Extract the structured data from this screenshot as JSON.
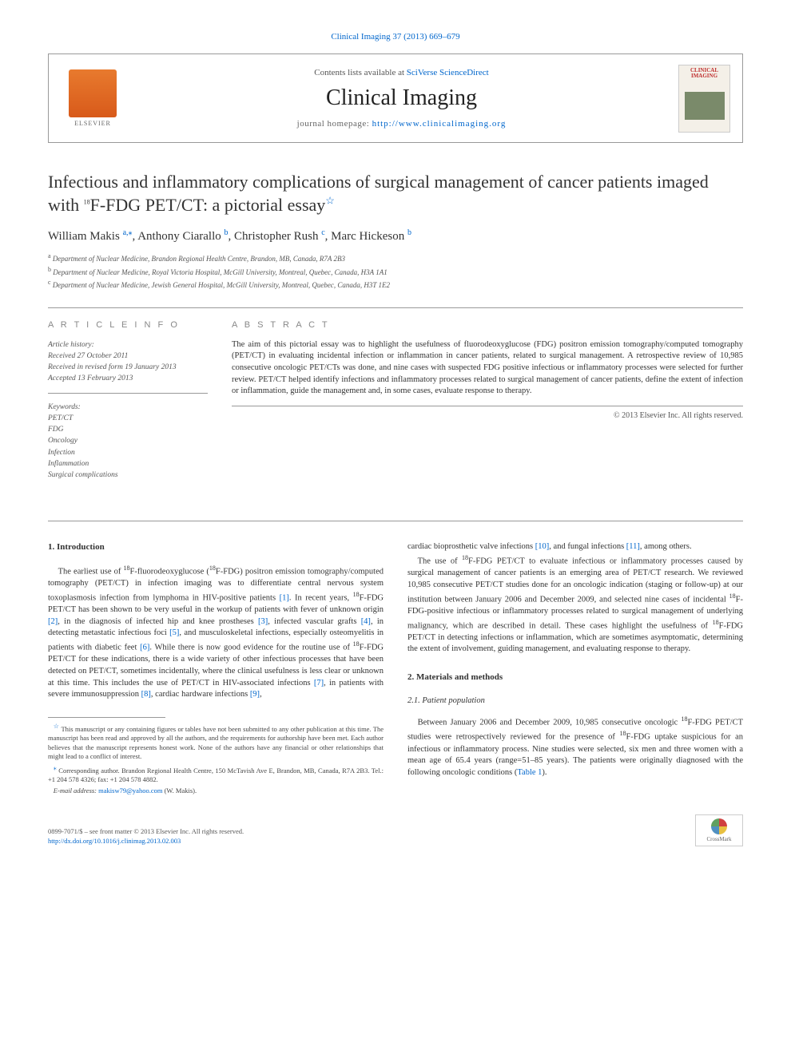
{
  "topLink": {
    "journal": "Clinical Imaging",
    "volumeIssue": "37 (2013) 669–679",
    "url": "Clinical Imaging 37 (2013) 669–679"
  },
  "headerBox": {
    "contentsPrefix": "Contents lists available at ",
    "contentsLink": "SciVerse ScienceDirect",
    "journalName": "Clinical Imaging",
    "homepagePrefix": "journal homepage: ",
    "homepageLink": "http://www.clinicalimaging.org",
    "elsevierLabel": "ELSEVIER",
    "coverTitle": "CLINICAL IMAGING"
  },
  "article": {
    "titlePart1": "Infectious and inflammatory complications of surgical management of cancer patients imaged with ",
    "titleSup": "18",
    "titlePart2": "F-FDG PET/CT: a pictorial essay",
    "starMark": "☆",
    "authors": [
      {
        "name": "William Makis",
        "marks": "a,⁎"
      },
      {
        "name": "Anthony Ciarallo",
        "marks": "b"
      },
      {
        "name": "Christopher Rush",
        "marks": "c"
      },
      {
        "name": "Marc Hickeson",
        "marks": "b"
      }
    ],
    "affiliations": [
      {
        "mark": "a",
        "text": "Department of Nuclear Medicine, Brandon Regional Health Centre, Brandon, MB, Canada, R7A 2B3"
      },
      {
        "mark": "b",
        "text": "Department of Nuclear Medicine, Royal Victoria Hospital, McGill University, Montreal, Quebec, Canada, H3A 1A1"
      },
      {
        "mark": "c",
        "text": "Department of Nuclear Medicine, Jewish General Hospital, McGill University, Montreal, Quebec, Canada, H3T 1E2"
      }
    ]
  },
  "info": {
    "heading": "A R T I C L E  I N F O",
    "historyLabel": "Article history:",
    "history": [
      "Received 27 October 2011",
      "Received in revised form 19 January 2013",
      "Accepted 13 February 2013"
    ],
    "keywordsLabel": "Keywords:",
    "keywords": [
      "PET/CT",
      "FDG",
      "Oncology",
      "Infection",
      "Inflammation",
      "Surgical complications"
    ]
  },
  "abstract": {
    "heading": "A B S T R A C T",
    "text": "The aim of this pictorial essay was to highlight the usefulness of fluorodeoxyglucose (FDG) positron emission tomography/computed tomography (PET/CT) in evaluating incidental infection or inflammation in cancer patients, related to surgical management. A retrospective review of 10,985 consecutive oncologic PET/CTs was done, and nine cases with suspected FDG positive infectious or inflammatory processes were selected for further review. PET/CT helped identify infections and inflammatory processes related to surgical management of cancer patients, define the extent of infection or inflammation, guide the management and, in some cases, evaluate response to therapy.",
    "copyright": "© 2013 Elsevier Inc. All rights reserved."
  },
  "body": {
    "introHeading": "1. Introduction",
    "introP1a": "The earliest use of ",
    "introP1b": "F-fluorodeoxyglucose (",
    "introP1c": "F-FDG) positron emission tomography/computed tomography (PET/CT) in infection imaging was to differentiate central nervous system toxoplasmosis infection from lymphoma in HIV-positive patients ",
    "ref1": "[1]",
    "introP1d": ". In recent years, ",
    "introP1e": "F-FDG PET/CT has been shown to be very useful in the workup of patients with fever of unknown origin ",
    "ref2": "[2]",
    "introP1f": ", in the diagnosis of infected hip and knee prostheses ",
    "ref3": "[3]",
    "introP1g": ", infected vascular grafts ",
    "ref4": "[4]",
    "introP1h": ", in detecting metastatic infectious foci ",
    "ref5": "[5]",
    "introP1i": ", and musculoskeletal infections, especially osteomyelitis in patients with diabetic feet ",
    "ref6": "[6]",
    "introP1j": ". While there is now good evidence for the routine use of ",
    "introP1k": "F-FDG PET/CT for these indications, there is a wide variety of other infectious processes that have been detected on PET/CT, sometimes incidentally, where the clinical usefulness is less clear or unknown at this time. This includes the use of PET/CT in HIV-associated infections ",
    "ref7": "[7]",
    "introP1l": ", in patients with severe immunosuppression ",
    "ref8": "[8]",
    "introP1m": ", cardiac hardware infections ",
    "ref9": "[9]",
    "introP1n": ", ",
    "col2P1a": "cardiac bioprosthetic valve infections ",
    "ref10": "[10]",
    "col2P1b": ", and fungal infections ",
    "ref11": "[11]",
    "col2P1c": ", among others.",
    "col2P2a": "The use of ",
    "col2P2b": "F-FDG PET/CT to evaluate infectious or inflammatory processes caused by surgical management of cancer patients is an emerging area of PET/CT research. We reviewed 10,985 consecutive PET/CT studies done for an oncologic indication (staging or follow-up) at our institution between January 2006 and December 2009, and selected nine cases of incidental ",
    "col2P2c": "F-FDG-positive infectious or inflammatory processes related to surgical management of underlying malignancy, which are described in detail. These cases highlight the usefulness of ",
    "col2P2d": "F-FDG PET/CT in detecting infections or inflammation, which are sometimes asymptomatic, determining the extent of involvement, guiding management, and evaluating response to therapy.",
    "methodsHeading": "2. Materials and methods",
    "patientPopHeading": "2.1. Patient population",
    "methodsP1a": "Between January 2006 and December 2009, 10,985 consecutive oncologic ",
    "methodsP1b": "F-FDG PET/CT studies were retrospectively reviewed for the presence of ",
    "methodsP1c": "F-FDG uptake suspicious for an infectious or inflammatory process. Nine studies were selected, six men and three women with a mean age of 65.4 years (range=51–85 years). The patients were originally diagnosed with the following oncologic conditions (",
    "tableRef": "Table 1",
    "methodsP1d": ")."
  },
  "footnotes": {
    "starMark": "☆",
    "starText": "This manuscript or any containing figures or tables have not been submitted to any other publication at this time. The manuscript has been read and approved by all the authors, and the requirements for authorship have been met. Each author believes that the manuscript represents honest work. None of the authors have any financial or other relationships that might lead to a conflict of interest.",
    "corrMark": "⁎",
    "corrText": "Corresponding author. Brandon Regional Health Centre, 150 McTavish Ave E, Brandon, MB, Canada, R7A 2B3. Tel.: +1 204 578 4326; fax: +1 204 578 4882.",
    "emailLabel": "E-mail address: ",
    "email": "makisw79@yahoo.com",
    "emailSuffix": " (W. Makis)."
  },
  "footer": {
    "line1": "0899-7071/$ – see front matter © 2013 Elsevier Inc. All rights reserved.",
    "doi": "http://dx.doi.org/10.1016/j.clinimag.2013.02.003",
    "crossmarkLabel": "CrossMark"
  },
  "colors": {
    "link": "#0066cc",
    "text": "#333333",
    "border": "#999999",
    "elsevierOrange": "#e8772e"
  }
}
